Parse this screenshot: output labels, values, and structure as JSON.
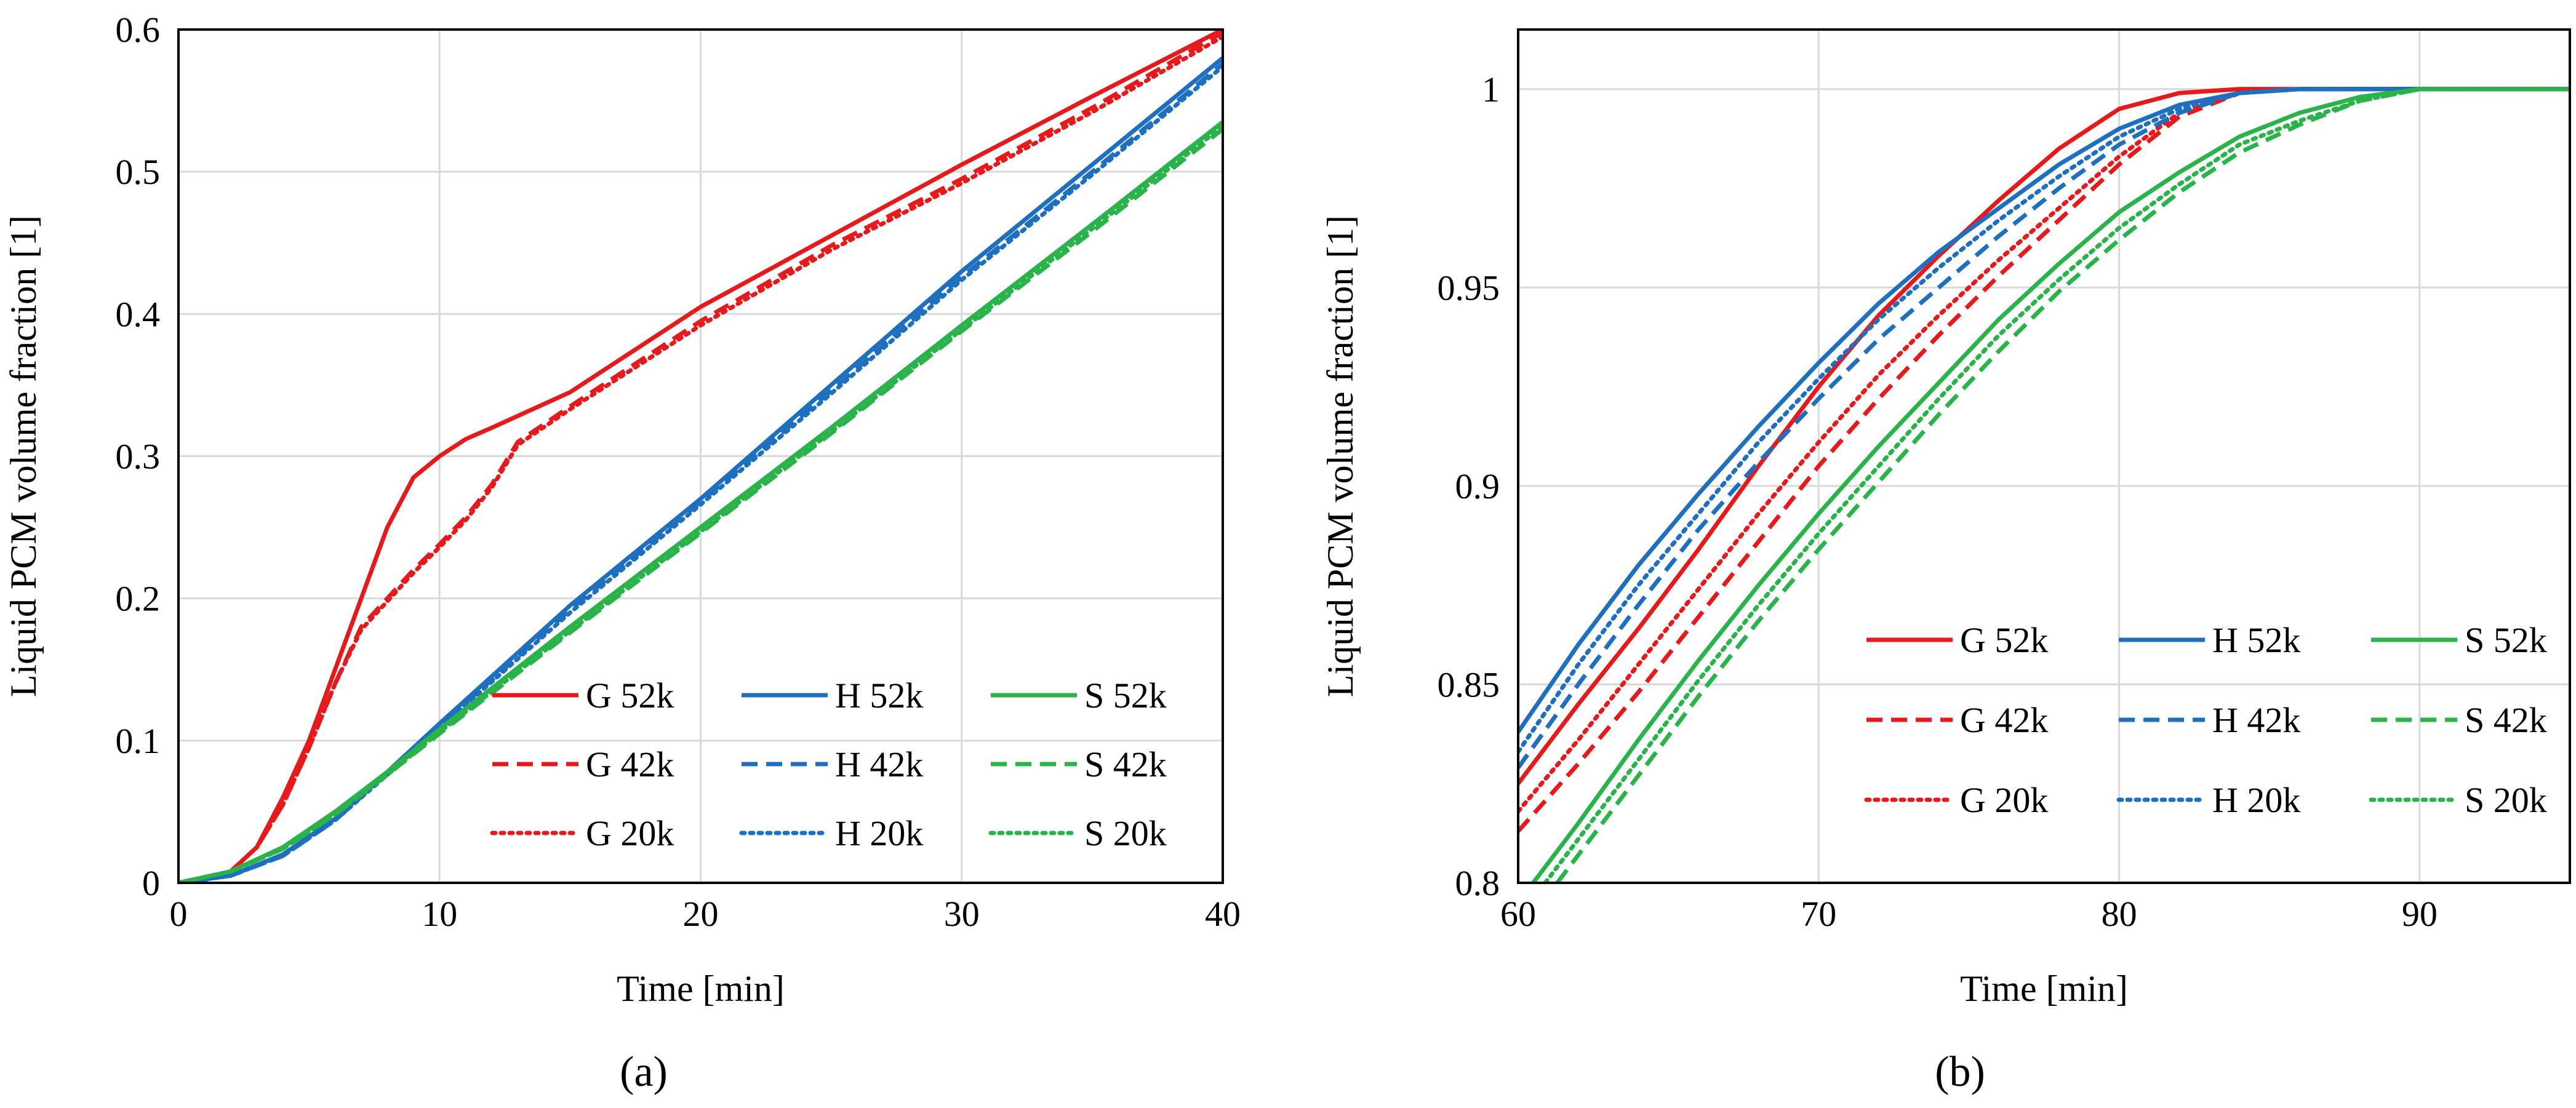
{
  "figure": {
    "captions": [
      "(a)",
      "(b)"
    ],
    "series_style": {
      "colors": {
        "G": "#e41a1c",
        "H": "#1f6fbf",
        "S": "#2ab34a"
      },
      "dash": {
        "52k": "solid",
        "42k": "dashed",
        "20k": "dotted"
      }
    }
  },
  "chart_data": [
    {
      "type": "line",
      "panel": "(a)",
      "title": "",
      "xlabel": "Time [min]",
      "ylabel": "Liquid PCM volume fraction [1]",
      "xlim": [
        0,
        40
      ],
      "ylim": [
        0,
        0.6
      ],
      "xticks": [
        0,
        10,
        20,
        30,
        40
      ],
      "yticks": [
        0,
        0.1,
        0.2,
        0.3,
        0.4,
        0.5,
        0.6
      ],
      "xtick_labels": [
        "0",
        "10",
        "20",
        "30",
        "40"
      ],
      "ytick_labels": [
        "0",
        "0.1",
        "0.2",
        "0.3",
        "0.4",
        "0.5",
        "0.6"
      ],
      "grid": true,
      "legend_position": "bottom-right",
      "series": [
        {
          "name": "G 52k",
          "group": "G",
          "mesh": "52k",
          "x": [
            0,
            1,
            2,
            3,
            4,
            5,
            6,
            7,
            8,
            9,
            10,
            11,
            12,
            15,
            20,
            25,
            30,
            35,
            40
          ],
          "y": [
            0,
            0.002,
            0.008,
            0.025,
            0.06,
            0.1,
            0.15,
            0.2,
            0.25,
            0.285,
            0.3,
            0.312,
            0.32,
            0.345,
            0.405,
            0.455,
            0.505,
            0.553,
            0.6
          ]
        },
        {
          "name": "G 42k",
          "group": "G",
          "mesh": "42k",
          "x": [
            0,
            1,
            2,
            3,
            4,
            5,
            6,
            7,
            8,
            9,
            10,
            11,
            12,
            13,
            15,
            20,
            25,
            30,
            35,
            40
          ],
          "y": [
            0,
            0.002,
            0.008,
            0.025,
            0.055,
            0.095,
            0.14,
            0.18,
            0.2,
            0.22,
            0.238,
            0.257,
            0.28,
            0.31,
            0.335,
            0.395,
            0.448,
            0.495,
            0.545,
            0.598
          ]
        },
        {
          "name": "G 20k",
          "group": "G",
          "mesh": "20k",
          "x": [
            0,
            1,
            2,
            3,
            4,
            5,
            6,
            7,
            8,
            9,
            10,
            11,
            12,
            13,
            15,
            20,
            25,
            30,
            35,
            40
          ],
          "y": [
            0,
            0.002,
            0.008,
            0.025,
            0.055,
            0.095,
            0.14,
            0.178,
            0.198,
            0.218,
            0.236,
            0.255,
            0.278,
            0.308,
            0.333,
            0.392,
            0.445,
            0.492,
            0.542,
            0.595
          ]
        },
        {
          "name": "H 52k",
          "group": "H",
          "mesh": "52k",
          "x": [
            0,
            2,
            4,
            6,
            8,
            10,
            15,
            20,
            25,
            30,
            35,
            40
          ],
          "y": [
            0,
            0.005,
            0.02,
            0.045,
            0.078,
            0.112,
            0.195,
            0.27,
            0.35,
            0.43,
            0.505,
            0.58
          ]
        },
        {
          "name": "H 42k",
          "group": "H",
          "mesh": "42k",
          "x": [
            0,
            2,
            4,
            6,
            8,
            10,
            15,
            20,
            25,
            30,
            35,
            40
          ],
          "y": [
            0,
            0.005,
            0.019,
            0.044,
            0.077,
            0.11,
            0.192,
            0.268,
            0.346,
            0.426,
            0.5,
            0.576
          ]
        },
        {
          "name": "H 20k",
          "group": "H",
          "mesh": "20k",
          "x": [
            0,
            2,
            4,
            6,
            8,
            10,
            15,
            20,
            25,
            30,
            35,
            40
          ],
          "y": [
            0,
            0.005,
            0.019,
            0.044,
            0.076,
            0.109,
            0.19,
            0.266,
            0.344,
            0.424,
            0.498,
            0.574
          ]
        },
        {
          "name": "S 52k",
          "group": "S",
          "mesh": "52k",
          "x": [
            0,
            2,
            4,
            6,
            8,
            10,
            15,
            20,
            25,
            30,
            35,
            40
          ],
          "y": [
            0,
            0.008,
            0.025,
            0.05,
            0.078,
            0.108,
            0.18,
            0.25,
            0.32,
            0.392,
            0.463,
            0.535
          ]
        },
        {
          "name": "S 42k",
          "group": "S",
          "mesh": "42k",
          "x": [
            0,
            2,
            4,
            6,
            8,
            10,
            15,
            20,
            25,
            30,
            35,
            40
          ],
          "y": [
            0,
            0.008,
            0.024,
            0.048,
            0.076,
            0.105,
            0.176,
            0.246,
            0.316,
            0.388,
            0.458,
            0.53
          ]
        },
        {
          "name": "S 20k",
          "group": "S",
          "mesh": "20k",
          "x": [
            0,
            2,
            4,
            6,
            8,
            10,
            15,
            20,
            25,
            30,
            35,
            40
          ],
          "y": [
            0,
            0.008,
            0.024,
            0.048,
            0.076,
            0.106,
            0.177,
            0.247,
            0.317,
            0.389,
            0.46,
            0.532
          ]
        }
      ]
    },
    {
      "type": "line",
      "panel": "(b)",
      "title": "",
      "xlabel": "Time [min]",
      "ylabel": "Liquid PCM volume fraction [1]",
      "xlim": [
        60,
        95
      ],
      "ylim": [
        0.8,
        1.015
      ],
      "xticks": [
        60,
        70,
        80,
        90
      ],
      "yticks": [
        0.8,
        0.85,
        0.9,
        0.95,
        1
      ],
      "xtick_labels": [
        "60",
        "70",
        "80",
        "90"
      ],
      "ytick_labels": [
        "0.8",
        "0.85",
        "0.9",
        "0.95",
        "1"
      ],
      "grid": true,
      "legend_position": "center-right",
      "series": [
        {
          "name": "G 52k",
          "group": "G",
          "mesh": "52k",
          "x": [
            60,
            62,
            64,
            66,
            68,
            70,
            72,
            74,
            76,
            78,
            80,
            82,
            84,
            86,
            88,
            95
          ],
          "y": [
            0.825,
            0.845,
            0.864,
            0.884,
            0.905,
            0.925,
            0.943,
            0.958,
            0.972,
            0.985,
            0.995,
            0.999,
            1,
            1,
            1,
            1
          ]
        },
        {
          "name": "G 42k",
          "group": "G",
          "mesh": "42k",
          "x": [
            60,
            62,
            64,
            66,
            68,
            70,
            72,
            74,
            76,
            78,
            80,
            82,
            84,
            86,
            88,
            95
          ],
          "y": [
            0.813,
            0.83,
            0.848,
            0.867,
            0.886,
            0.905,
            0.922,
            0.938,
            0.953,
            0.967,
            0.981,
            0.993,
            0.999,
            1,
            1,
            1
          ]
        },
        {
          "name": "G 20k",
          "group": "G",
          "mesh": "20k",
          "x": [
            60,
            62,
            64,
            66,
            68,
            70,
            72,
            74,
            76,
            78,
            80,
            82,
            84,
            86,
            88,
            95
          ],
          "y": [
            0.818,
            0.836,
            0.855,
            0.874,
            0.893,
            0.911,
            0.928,
            0.943,
            0.957,
            0.97,
            0.983,
            0.994,
            0.999,
            1,
            1,
            1
          ]
        },
        {
          "name": "H 52k",
          "group": "H",
          "mesh": "52k",
          "x": [
            60,
            62,
            64,
            66,
            68,
            70,
            72,
            74,
            76,
            78,
            80,
            82,
            84,
            86,
            88,
            95
          ],
          "y": [
            0.838,
            0.86,
            0.88,
            0.898,
            0.915,
            0.931,
            0.946,
            0.959,
            0.97,
            0.981,
            0.99,
            0.996,
            0.999,
            1,
            1,
            1
          ]
        },
        {
          "name": "H 42k",
          "group": "H",
          "mesh": "42k",
          "x": [
            60,
            62,
            64,
            66,
            68,
            70,
            72,
            74,
            76,
            78,
            80,
            82,
            84,
            86,
            88,
            95
          ],
          "y": [
            0.829,
            0.85,
            0.87,
            0.889,
            0.906,
            0.922,
            0.937,
            0.95,
            0.963,
            0.975,
            0.986,
            0.994,
            0.999,
            1,
            1,
            1
          ]
        },
        {
          "name": "H 20k",
          "group": "H",
          "mesh": "20k",
          "x": [
            60,
            62,
            64,
            66,
            68,
            70,
            72,
            74,
            76,
            78,
            80,
            82,
            84,
            86,
            88,
            95
          ],
          "y": [
            0.833,
            0.855,
            0.875,
            0.893,
            0.911,
            0.927,
            0.942,
            0.955,
            0.967,
            0.978,
            0.988,
            0.995,
            0.999,
            1,
            1,
            1
          ]
        },
        {
          "name": "S 52k",
          "group": "S",
          "mesh": "52k",
          "x": [
            60.5,
            62,
            64,
            66,
            68,
            70,
            72,
            74,
            76,
            78,
            80,
            82,
            84,
            86,
            88,
            90,
            95
          ],
          "y": [
            0.8,
            0.815,
            0.836,
            0.856,
            0.875,
            0.893,
            0.91,
            0.926,
            0.942,
            0.956,
            0.969,
            0.979,
            0.988,
            0.994,
            0.998,
            1,
            1
          ]
        },
        {
          "name": "S 42k",
          "group": "S",
          "mesh": "42k",
          "x": [
            61.3,
            62,
            64,
            66,
            68,
            70,
            72,
            74,
            76,
            78,
            80,
            82,
            84,
            86,
            88,
            90,
            95
          ],
          "y": [
            0.8,
            0.807,
            0.827,
            0.847,
            0.866,
            0.884,
            0.901,
            0.918,
            0.934,
            0.949,
            0.962,
            0.974,
            0.984,
            0.991,
            0.997,
            1,
            1
          ]
        },
        {
          "name": "S 20k",
          "group": "S",
          "mesh": "20k",
          "x": [
            60.9,
            62,
            64,
            66,
            68,
            70,
            72,
            74,
            76,
            78,
            80,
            82,
            84,
            86,
            88,
            90,
            95
          ],
          "y": [
            0.8,
            0.811,
            0.831,
            0.851,
            0.87,
            0.888,
            0.905,
            0.922,
            0.938,
            0.952,
            0.965,
            0.976,
            0.986,
            0.992,
            0.997,
            1,
            1
          ]
        }
      ]
    }
  ]
}
